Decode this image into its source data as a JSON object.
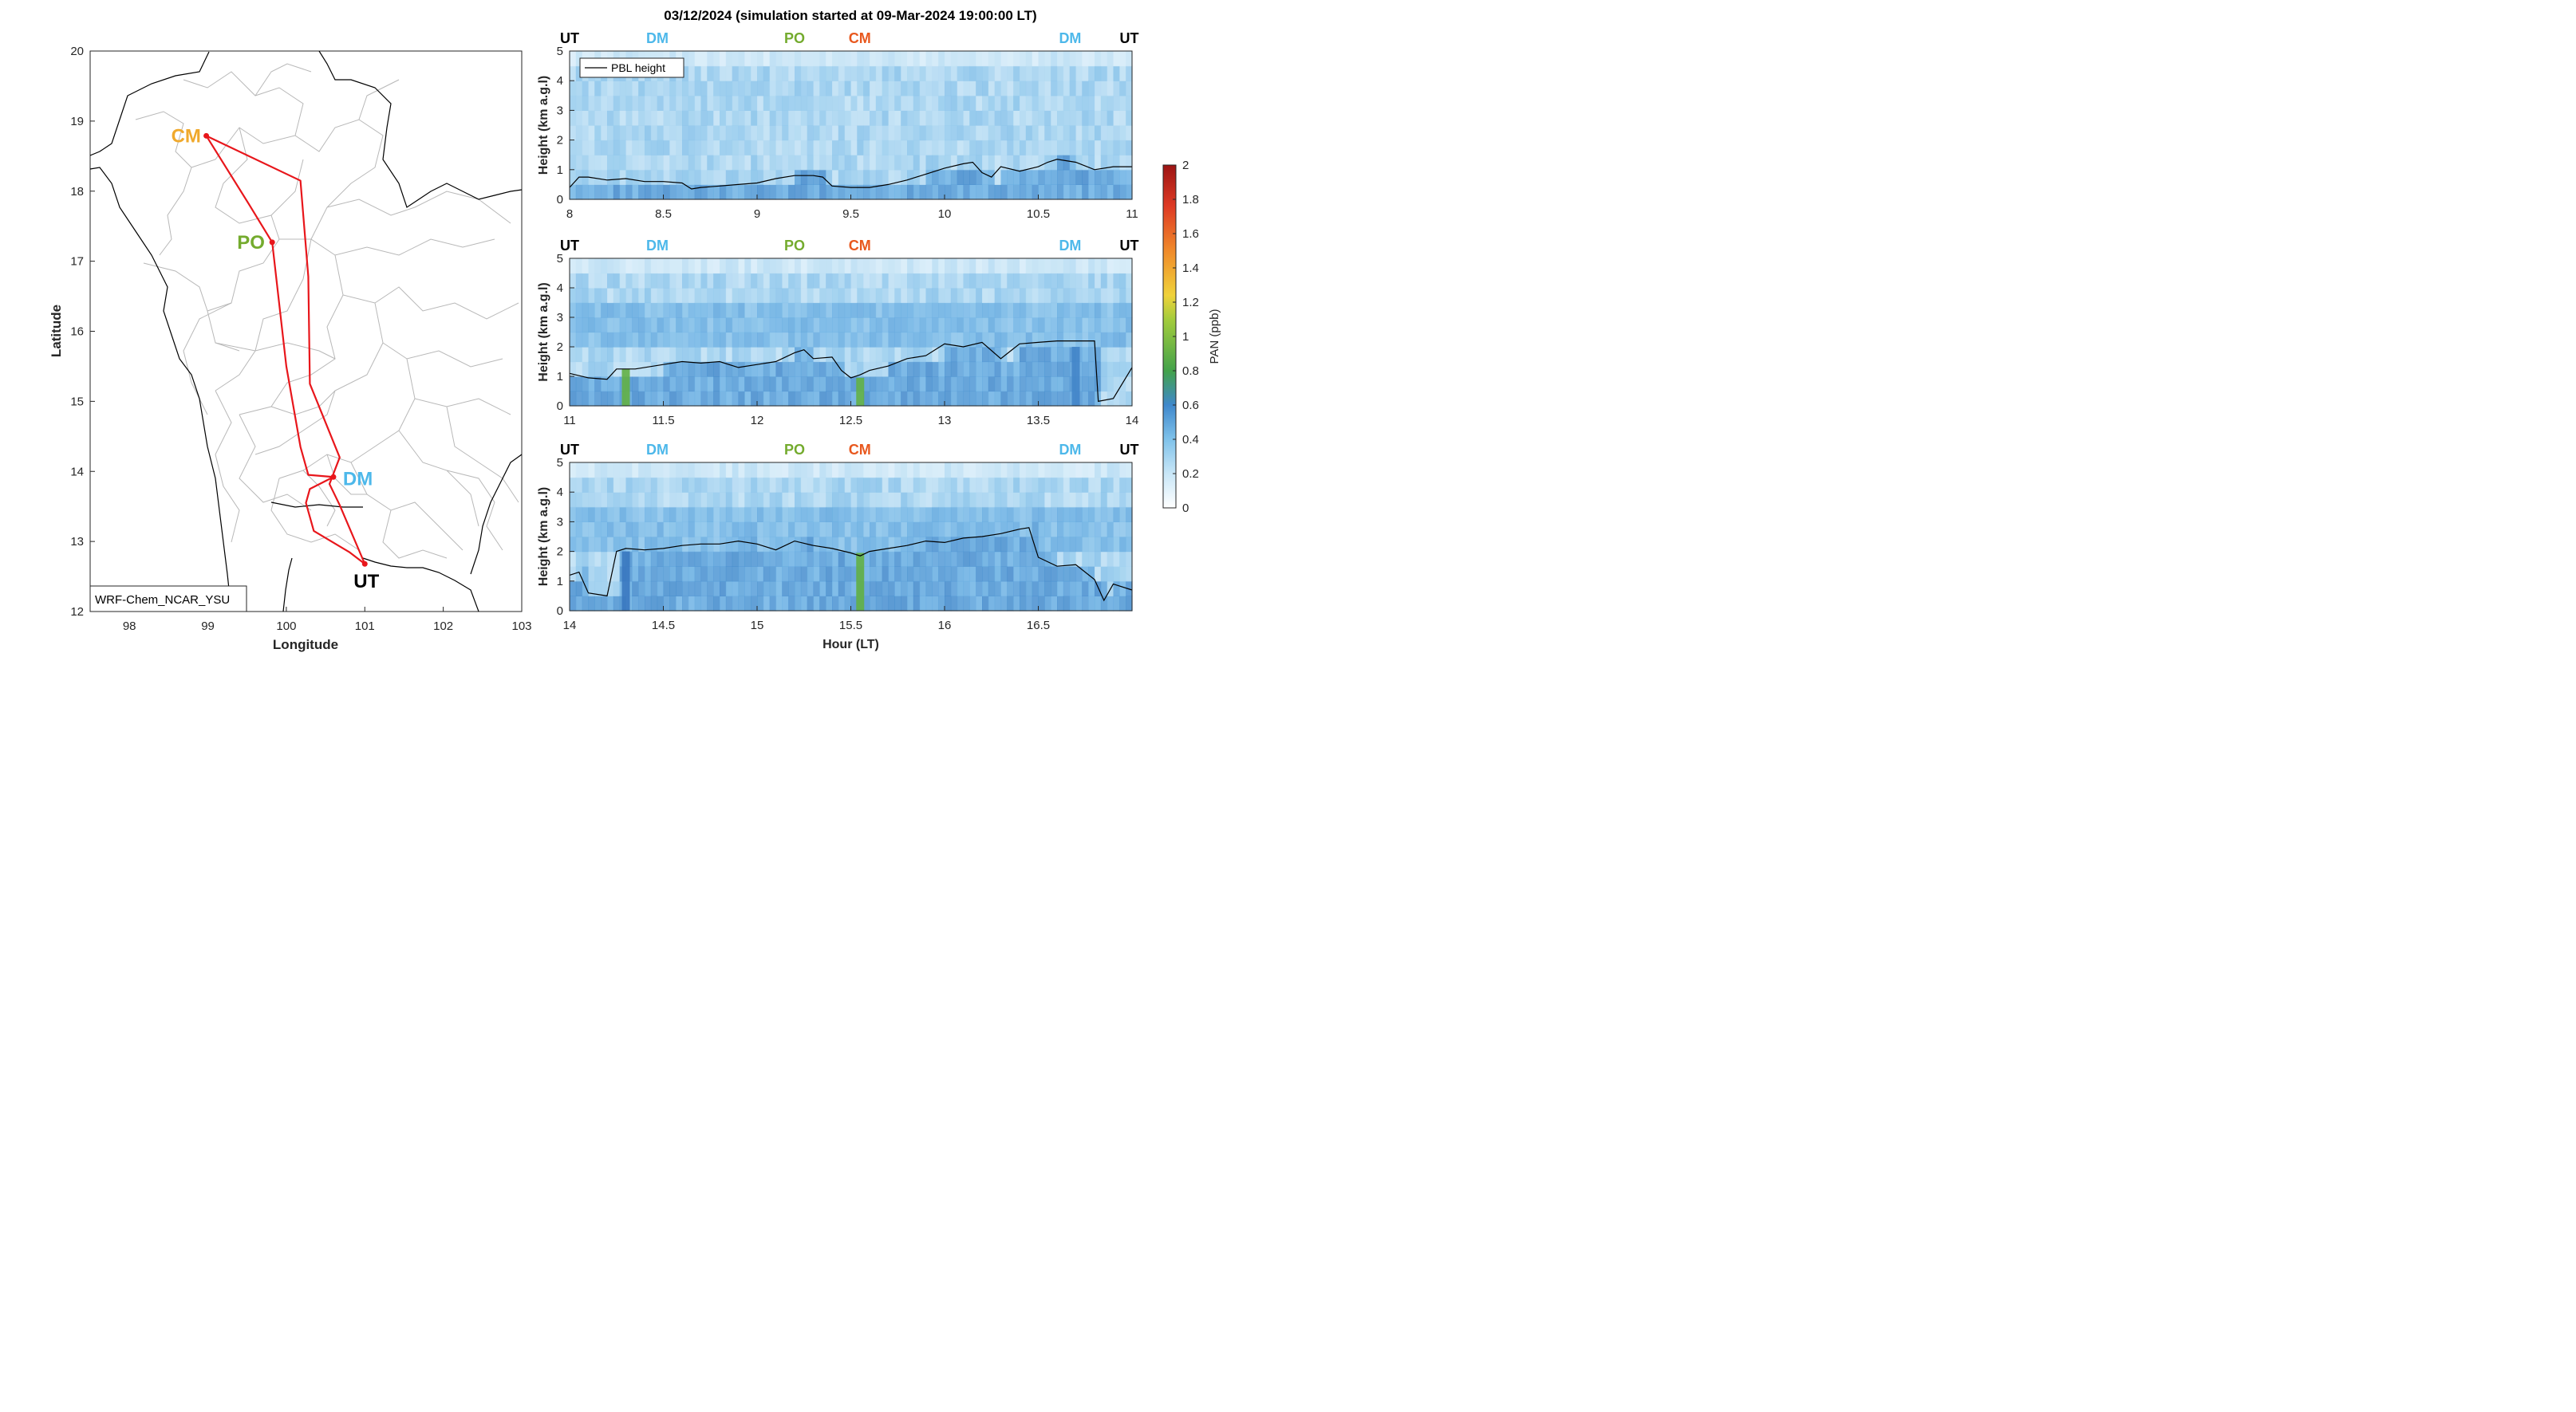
{
  "figure_title": "03/12/2024 (simulation started at 09-Mar-2024 19:00:00 LT)",
  "map": {
    "xlabel": "Longitude",
    "ylabel": "Latitude",
    "xlim": [
      97.5,
      103
    ],
    "ylim": [
      12,
      20
    ],
    "xticks": [
      "98",
      "99",
      "100",
      "101",
      "102",
      "103"
    ],
    "yticks": [
      "12",
      "13",
      "14",
      "15",
      "16",
      "17",
      "18",
      "19",
      "20"
    ],
    "model_label": "WRF-Chem_NCAR_YSU",
    "sites": [
      {
        "code": "CM",
        "lon": 98.98,
        "lat": 18.79,
        "color": "#f0a92c"
      },
      {
        "code": "PO",
        "lon": 99.82,
        "lat": 17.27,
        "color": "#74ab2e"
      },
      {
        "code": "DM",
        "lon": 100.6,
        "lat": 13.92,
        "color": "#4db8ea"
      },
      {
        "code": "UT",
        "lon": 101.0,
        "lat": 12.68,
        "color": "#000000"
      }
    ],
    "route_color": "#e8161b"
  },
  "colorbar": {
    "label": "PAN (ppb)",
    "ticks": [
      "0",
      "0.2",
      "0.4",
      "0.6",
      "0.8",
      "1",
      "1.2",
      "1.4",
      "1.6",
      "1.8",
      "2"
    ],
    "range": [
      0,
      2
    ]
  },
  "panels": [
    {
      "xticks": [
        "8",
        "8.5",
        "9",
        "9.5",
        "10",
        "10.5",
        "11"
      ],
      "site_labels": [
        {
          "text": "UT",
          "color": "#000000"
        },
        {
          "text": "DM",
          "color": "#4db8ea"
        },
        {
          "text": "PO",
          "color": "#74ab2e"
        },
        {
          "text": "CM",
          "color": "#e8581e"
        },
        {
          "text": "DM",
          "color": "#4db8ea"
        },
        {
          "text": "UT",
          "color": "#000000"
        }
      ],
      "legend": "PBL height"
    },
    {
      "xticks": [
        "11",
        "11.5",
        "12",
        "12.5",
        "13",
        "13.5",
        "14"
      ],
      "site_labels": [
        {
          "text": "UT",
          "color": "#000000"
        },
        {
          "text": "DM",
          "color": "#4db8ea"
        },
        {
          "text": "PO",
          "color": "#74ab2e"
        },
        {
          "text": "CM",
          "color": "#e8581e"
        },
        {
          "text": "DM",
          "color": "#4db8ea"
        },
        {
          "text": "UT",
          "color": "#000000"
        }
      ]
    },
    {
      "xticks": [
        "14",
        "14.5",
        "15",
        "15.5",
        "16",
        "16.5"
      ],
      "site_labels": [
        {
          "text": "UT",
          "color": "#000000"
        },
        {
          "text": "DM",
          "color": "#4db8ea"
        },
        {
          "text": "PO",
          "color": "#74ab2e"
        },
        {
          "text": "CM",
          "color": "#e8581e"
        },
        {
          "text": "DM",
          "color": "#4db8ea"
        },
        {
          "text": "UT",
          "color": "#000000"
        }
      ],
      "xlabel": "Hour (LT)"
    }
  ],
  "panel_common": {
    "ylabel": "Height (km a.g.l)",
    "yticks": [
      "0",
      "1",
      "2",
      "3",
      "4",
      "5"
    ]
  },
  "chart_data": [
    {
      "type": "line",
      "title": "03/12/2024 (simulation started at 09-Mar-2024 19:00:00 LT)",
      "xlabel": "",
      "ylabel": "Height (km a.g.l)",
      "xlim": [
        8,
        11
      ],
      "ylim": [
        0,
        5
      ],
      "series": [
        {
          "name": "PBL height",
          "x": [
            8.0,
            8.05,
            8.1,
            8.2,
            8.3,
            8.4,
            8.5,
            8.6,
            8.65,
            8.7,
            8.8,
            8.9,
            9.0,
            9.1,
            9.2,
            9.3,
            9.35,
            9.4,
            9.5,
            9.6,
            9.7,
            9.8,
            9.9,
            10.0,
            10.1,
            10.15,
            10.2,
            10.25,
            10.3,
            10.4,
            10.5,
            10.55,
            10.6,
            10.7,
            10.8,
            10.9,
            11.0
          ],
          "y": [
            0.4,
            0.75,
            0.75,
            0.65,
            0.7,
            0.6,
            0.6,
            0.55,
            0.35,
            0.4,
            0.45,
            0.5,
            0.55,
            0.7,
            0.8,
            0.8,
            0.75,
            0.45,
            0.4,
            0.4,
            0.5,
            0.65,
            0.85,
            1.05,
            1.2,
            1.25,
            0.9,
            0.75,
            1.1,
            0.95,
            1.1,
            1.25,
            1.35,
            1.25,
            1.0,
            1.1,
            1.1
          ]
        }
      ],
      "heatmap": {
        "variable": "PAN (ppb)",
        "value_range": [
          0,
          2
        ],
        "typical_range": [
          0.1,
          0.5
        ]
      }
    },
    {
      "type": "line",
      "xlabel": "",
      "ylabel": "Height (km a.g.l)",
      "xlim": [
        11,
        14
      ],
      "ylim": [
        0,
        5
      ],
      "series": [
        {
          "name": "PBL height",
          "x": [
            11.0,
            11.1,
            11.2,
            11.25,
            11.35,
            11.5,
            11.6,
            11.7,
            11.8,
            11.9,
            12.0,
            12.1,
            12.2,
            12.25,
            12.3,
            12.4,
            12.45,
            12.5,
            12.55,
            12.6,
            12.7,
            12.8,
            12.9,
            13.0,
            13.1,
            13.2,
            13.3,
            13.4,
            13.5,
            13.6,
            13.7,
            13.8,
            13.82,
            13.9,
            14.0
          ],
          "y": [
            1.1,
            0.95,
            0.9,
            1.25,
            1.25,
            1.4,
            1.5,
            1.45,
            1.5,
            1.3,
            1.4,
            1.5,
            1.8,
            1.9,
            1.6,
            1.65,
            1.2,
            0.95,
            1.05,
            1.2,
            1.35,
            1.6,
            1.7,
            2.1,
            2.0,
            2.15,
            1.6,
            2.1,
            2.15,
            2.2,
            2.2,
            2.2,
            0.15,
            0.25,
            1.3
          ]
        }
      ]
    },
    {
      "type": "line",
      "xlabel": "Hour (LT)",
      "ylabel": "Height (km a.g.l)",
      "xlim": [
        14,
        17
      ],
      "ylim": [
        0,
        5
      ],
      "series": [
        {
          "name": "PBL height",
          "x": [
            14.0,
            14.05,
            14.1,
            14.2,
            14.25,
            14.3,
            14.4,
            14.5,
            14.6,
            14.7,
            14.8,
            14.9,
            15.0,
            15.1,
            15.2,
            15.3,
            15.4,
            15.5,
            15.55,
            15.6,
            15.7,
            15.8,
            15.9,
            16.0,
            16.1,
            16.2,
            16.3,
            16.4,
            16.45,
            16.5,
            16.6,
            16.7,
            16.8,
            16.85,
            16.9,
            17.0
          ],
          "y": [
            1.2,
            1.3,
            0.6,
            0.5,
            2.0,
            2.1,
            2.05,
            2.1,
            2.2,
            2.25,
            2.25,
            2.35,
            2.25,
            2.05,
            2.35,
            2.2,
            2.1,
            1.95,
            1.85,
            2.0,
            2.1,
            2.2,
            2.35,
            2.3,
            2.45,
            2.5,
            2.6,
            2.75,
            2.8,
            1.8,
            1.5,
            1.55,
            1.05,
            0.35,
            0.9,
            0.7
          ]
        }
      ]
    }
  ]
}
